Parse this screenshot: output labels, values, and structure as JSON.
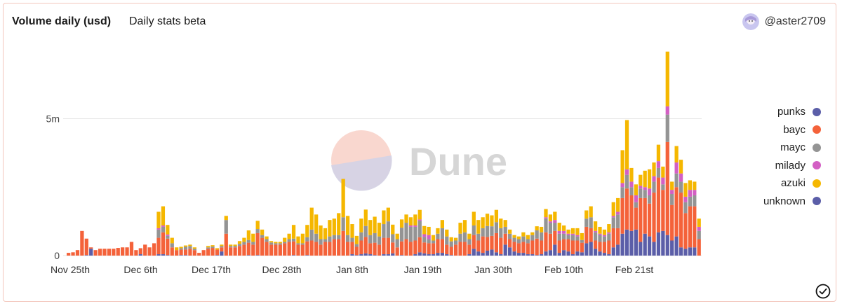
{
  "header": {
    "title": "Volume daily (usd)",
    "subtitle": "Daily stats beta",
    "username": "@aster2709"
  },
  "watermark": {
    "text": "Dune"
  },
  "colors": {
    "punks": "#5b5ea8",
    "bayc": "#f4623a",
    "mayc": "#949494",
    "milady": "#d35fc4",
    "azuki": "#f5b700",
    "unknown": "#5b5ea8"
  },
  "chart_data": {
    "type": "bar",
    "stacked": true,
    "x_ticks": [
      "Nov 25th",
      "Dec 6th",
      "Dec 17th",
      "Dec 28th",
      "Jan 8th",
      "Jan 19th",
      "Jan 30th",
      "Feb 10th",
      "Feb 21st"
    ],
    "y_ticks": [
      "0",
      "5m"
    ],
    "ylim": [
      0,
      7800000
    ],
    "grid": true,
    "legend_position": "right",
    "series_order": [
      "punks",
      "bayc",
      "mayc",
      "milady",
      "azuki",
      "unknown"
    ],
    "series": [
      {
        "name": "punks",
        "values": [
          0,
          0,
          0,
          0,
          0.02,
          0.25,
          0,
          0,
          0,
          0,
          0,
          0,
          0,
          0,
          0,
          0,
          0.05,
          0,
          0,
          0,
          0.05,
          0.05,
          0.02,
          0,
          0,
          0.02,
          0.02,
          0,
          0,
          0,
          0,
          0,
          0,
          0.02,
          0.15,
          0,
          0,
          0,
          0,
          0,
          0.02,
          0,
          0.02,
          0,
          0,
          0,
          0,
          0,
          0,
          0,
          0.02,
          0,
          0,
          0.02,
          0,
          0,
          0,
          0,
          0,
          0,
          0,
          0,
          0,
          0.05,
          0.02,
          0.05,
          0.08,
          0.05,
          0.02,
          0,
          0.05,
          0.05,
          0.08,
          0,
          0.02,
          0,
          0,
          0.05,
          0.12,
          0.08,
          0.05,
          0.05,
          0.1,
          0.1,
          0.05,
          0.02,
          0,
          0,
          0,
          0.05,
          0.25,
          0.15,
          0.1,
          0.18,
          0.22,
          0.12,
          0.05,
          0.4,
          0.3,
          0.15,
          0.1,
          0.1,
          0.05,
          0.05,
          0.02,
          0.05,
          0.15,
          0.2,
          0.4,
          0.1,
          0.2,
          0.15,
          0.05,
          0.15,
          0.12,
          0.45,
          0.5,
          0.25,
          0.15,
          0.1,
          0.05,
          0.3,
          0.4,
          0.8,
          0.95,
          0.9,
          0.95,
          0.5,
          0.8,
          0.7,
          0.5,
          0.85,
          0.9,
          0.75,
          0.55,
          0.7,
          0.3,
          0.25,
          0.3,
          0.3,
          0
        ]
      },
      {
        "name": "bayc",
        "values": [
          0.1,
          0.12,
          0.2,
          0.9,
          0.6,
          0.05,
          0.2,
          0.25,
          0.25,
          0.25,
          0.25,
          0.28,
          0.3,
          0.3,
          0.5,
          0.2,
          0.22,
          0.4,
          0.3,
          0.45,
          0.6,
          0.8,
          0.6,
          0.3,
          0.2,
          0.2,
          0.2,
          0.25,
          0.2,
          0.1,
          0.2,
          0.25,
          0.28,
          0.2,
          0.15,
          0.8,
          0.3,
          0.3,
          0.35,
          0.4,
          0.45,
          0.4,
          0.8,
          0.65,
          0.5,
          0.4,
          0.4,
          0.4,
          0.45,
          0.5,
          0.5,
          0.4,
          0.4,
          0.5,
          0.55,
          0.5,
          0.4,
          0.5,
          0.5,
          0.6,
          0.6,
          0.9,
          0.5,
          0.45,
          0.3,
          0.5,
          0.6,
          0.4,
          0.45,
          0.4,
          0.6,
          0.6,
          0.4,
          0.3,
          0.5,
          0.6,
          0.5,
          0.5,
          0.55,
          0.4,
          0.4,
          0.4,
          0.5,
          0.5,
          0.35,
          0.3,
          0.4,
          0.5,
          0.5,
          0.35,
          0.5,
          0.4,
          0.6,
          0.5,
          0.5,
          0.7,
          0.6,
          0.4,
          0.3,
          0.35,
          0.35,
          0.4,
          0.4,
          0.5,
          0.6,
          0.5,
          0.7,
          0.6,
          0.5,
          0.45,
          0.4,
          0.45,
          0.5,
          0.4,
          0.35,
          0.6,
          0.5,
          0.3,
          0.35,
          0.4,
          0.5,
          0.7,
          0.6,
          1.3,
          1.5,
          1.3,
          0.8,
          1.6,
          1.3,
          1.2,
          1.8,
          2.0,
          1.5,
          3.4,
          1.3,
          1.8,
          2.0,
          1.3,
          1.5,
          1.5,
          0.6,
          0.55,
          0.05
        ]
      },
      {
        "name": "mayc",
        "values": [
          0,
          0,
          0,
          0,
          0,
          0,
          0,
          0,
          0,
          0,
          0,
          0,
          0,
          0,
          0,
          0,
          0,
          0,
          0,
          0,
          0.3,
          0.2,
          0.1,
          0.15,
          0,
          0.05,
          0.1,
          0.1,
          0.05,
          0,
          0,
          0.05,
          0.05,
          0,
          0.05,
          0.5,
          0.05,
          0.05,
          0.08,
          0.1,
          0.1,
          0.1,
          0.15,
          0.1,
          0.1,
          0.08,
          0.05,
          0.05,
          0.05,
          0.1,
          0.1,
          0.05,
          0.05,
          0.15,
          0.4,
          0.3,
          0.2,
          0.1,
          0.2,
          0.15,
          0.15,
          0.5,
          0.25,
          0.15,
          0.1,
          0.3,
          0.4,
          0.3,
          0.35,
          0.3,
          0.5,
          0.6,
          0.3,
          0.3,
          0.5,
          0.6,
          0.55,
          0.5,
          0.6,
          0.2,
          0.15,
          0.1,
          0.2,
          0.4,
          0.3,
          0.2,
          0.15,
          0.3,
          0.35,
          0.2,
          0.35,
          0.25,
          0.3,
          0.4,
          0.35,
          0.4,
          0.35,
          0.25,
          0.2,
          0.15,
          0.15,
          0.2,
          0.15,
          0.2,
          0.3,
          0.3,
          0.5,
          0.4,
          0.3,
          0.25,
          0.2,
          0.15,
          0.2,
          0.15,
          0.1,
          0.3,
          0.4,
          0.3,
          0.25,
          0.2,
          0.25,
          0.4,
          0.5,
          0.4,
          0.5,
          0.3,
          0.2,
          0.35,
          0.3,
          0.3,
          0.4,
          0.35,
          0.2,
          1.0,
          0.4,
          0.5,
          0.4,
          0.4,
          0.35,
          0.4,
          0.3,
          0.2,
          0
        ]
      },
      {
        "name": "milady",
        "values": [
          0,
          0,
          0,
          0,
          0,
          0,
          0,
          0,
          0,
          0,
          0,
          0,
          0,
          0,
          0,
          0,
          0,
          0,
          0,
          0,
          0.05,
          0.05,
          0.05,
          0,
          0,
          0,
          0,
          0,
          0,
          0,
          0,
          0,
          0,
          0,
          0,
          0,
          0,
          0,
          0,
          0,
          0,
          0,
          0,
          0,
          0,
          0,
          0,
          0,
          0,
          0,
          0,
          0,
          0,
          0,
          0,
          0,
          0,
          0,
          0,
          0,
          0,
          0,
          0,
          0,
          0,
          0,
          0,
          0,
          0,
          0,
          0,
          0,
          0,
          0,
          0,
          0,
          0.05,
          0.05,
          0.05,
          0.1,
          0.15,
          0,
          0,
          0,
          0,
          0,
          0,
          0,
          0,
          0,
          0,
          0,
          0,
          0,
          0,
          0,
          0,
          0,
          0,
          0,
          0,
          0,
          0,
          0,
          0,
          0,
          0.05,
          0.05,
          0.1,
          0.1,
          0.1,
          0.05,
          0.05,
          0.05,
          0,
          0,
          0,
          0.05,
          0.05,
          0.05,
          0.05,
          0.05,
          0.1,
          0.15,
          0.2,
          0.2,
          0.25,
          0.1,
          0.1,
          0.25,
          0.2,
          0.25,
          0.25,
          0.3,
          0.15,
          0.4,
          0.3,
          0.2,
          0.25,
          0.2,
          0.15,
          0.1,
          0.05,
          0.05,
          0
        ]
      },
      {
        "name": "azuki",
        "values": [
          0,
          0,
          0,
          0,
          0,
          0,
          0,
          0,
          0,
          0,
          0,
          0,
          0,
          0,
          0,
          0,
          0,
          0,
          0,
          0,
          0.6,
          0.7,
          0.35,
          0.2,
          0.1,
          0.05,
          0.05,
          0.05,
          0.05,
          0,
          0,
          0.05,
          0.05,
          0.05,
          0.05,
          0.15,
          0.05,
          0.05,
          0.1,
          0.15,
          0.35,
          0.3,
          0.3,
          0.2,
          0.1,
          0.05,
          0.05,
          0.05,
          0.15,
          0.2,
          0.5,
          0.25,
          0.35,
          0.45,
          0.8,
          0.7,
          0.5,
          0.4,
          0.6,
          0.6,
          0.8,
          1.4,
          0.7,
          0.5,
          0.3,
          0.5,
          0.6,
          0.55,
          0.6,
          0.5,
          0.5,
          0.5,
          0.35,
          0.2,
          0.3,
          0.3,
          0.3,
          0.4,
          0.35,
          0.3,
          0.3,
          0.2,
          0.2,
          0.3,
          0.25,
          0.15,
          0.1,
          0.4,
          0.45,
          0.2,
          0.5,
          0.5,
          0.4,
          0.45,
          0.4,
          0.45,
          0.35,
          0.25,
          0.15,
          0.1,
          0.1,
          0.15,
          0.15,
          0.1,
          0.15,
          0.2,
          0.3,
          0.25,
          0.3,
          0.3,
          0.2,
          0.15,
          0.2,
          0.25,
          0.25,
          0.3,
          0.4,
          0.35,
          0.25,
          0.2,
          0.3,
          0.5,
          0.5,
          1.2,
          1.8,
          0.5,
          0.4,
          0.4,
          0.6,
          0.7,
          0.5,
          0.6,
          0.4,
          2.0,
          0.3,
          0.6,
          0.5,
          0.5,
          0.35,
          0.3,
          0.3,
          0.2,
          0
        ]
      },
      {
        "name": "unknown",
        "values": [
          0,
          0,
          0,
          0,
          0,
          0,
          0,
          0,
          0,
          0,
          0,
          0,
          0,
          0,
          0,
          0,
          0,
          0,
          0,
          0,
          0,
          0,
          0,
          0,
          0,
          0,
          0,
          0,
          0,
          0,
          0,
          0,
          0,
          0,
          0,
          0,
          0,
          0,
          0,
          0,
          0,
          0,
          0,
          0,
          0,
          0,
          0,
          0,
          0,
          0,
          0,
          0,
          0,
          0,
          0,
          0,
          0,
          0,
          0,
          0,
          0,
          0,
          0,
          0,
          0,
          0,
          0,
          0,
          0,
          0,
          0,
          0,
          0,
          0,
          0,
          0,
          0,
          0,
          0,
          0,
          0,
          0,
          0,
          0,
          0,
          0,
          0,
          0,
          0,
          0,
          0,
          0,
          0,
          0,
          0,
          0,
          0,
          0,
          0,
          0,
          0,
          0,
          0,
          0,
          0,
          0,
          0,
          0,
          0,
          0,
          0,
          0,
          0,
          0,
          0,
          0,
          0,
          0,
          0,
          0,
          0,
          0,
          0,
          0,
          0,
          0,
          0,
          0,
          0,
          0,
          0,
          0,
          0,
          0,
          0,
          0,
          0,
          0,
          0,
          0,
          0,
          0,
          0,
          0,
          0.05
        ]
      }
    ]
  }
}
